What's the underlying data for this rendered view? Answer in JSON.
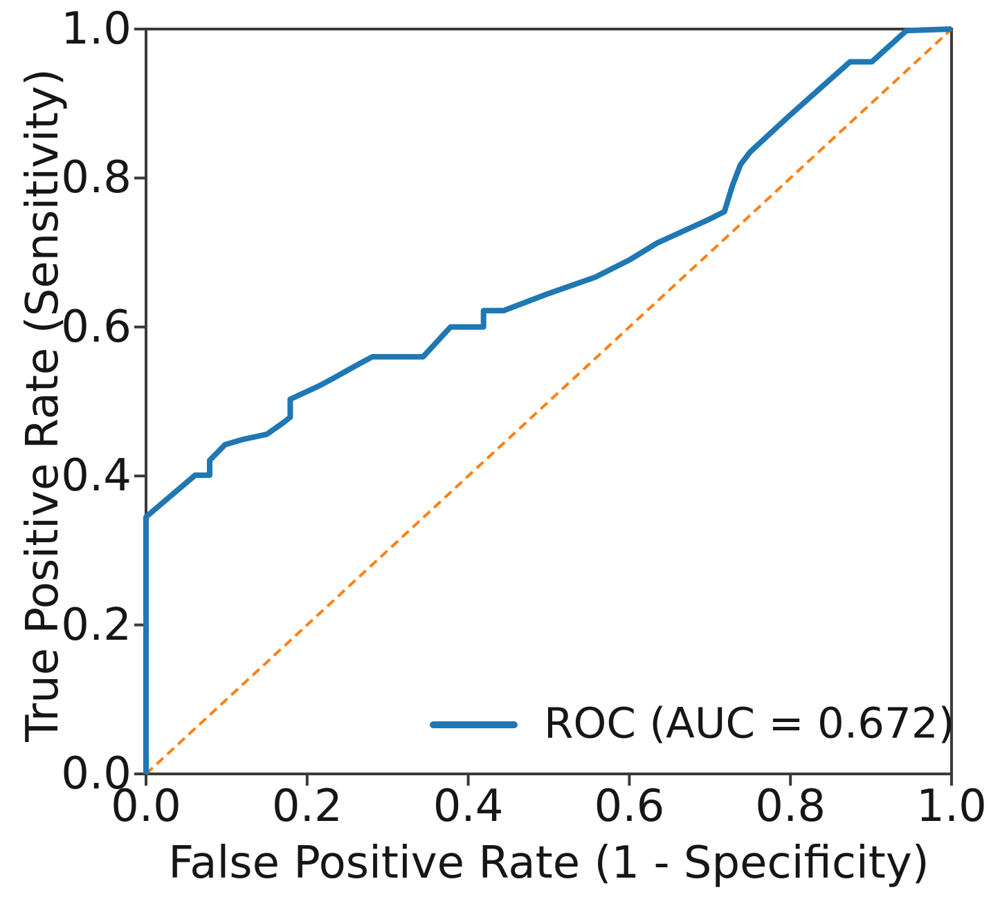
{
  "chart_data": {
    "type": "line",
    "title": "",
    "xlabel": "False Positive Rate (1 - Specificity)",
    "ylabel": "True Positive Rate (Sensitivity)",
    "xlim": [
      0.0,
      1.0
    ],
    "ylim": [
      0.0,
      1.0
    ],
    "x_ticks": [
      "0.0",
      "0.2",
      "0.4",
      "0.6",
      "0.8",
      "1.0"
    ],
    "y_ticks": [
      "0.0",
      "0.2",
      "0.4",
      "0.6",
      "0.8",
      "1.0"
    ],
    "grid": false,
    "auc": 0.672,
    "legend": {
      "position": "lower-right",
      "label": "ROC (AUC = 0.672)",
      "swatch_color": "#1f77b4"
    },
    "series": [
      {
        "name": "chance-diagonal",
        "color": "#ff7f0e",
        "line_style": "dashed",
        "line_width": 4,
        "in_legend": false,
        "points": [
          [
            0.0,
            0.0
          ],
          [
            1.0,
            1.0
          ]
        ]
      },
      {
        "name": "roc-curve",
        "legend_label": "ROC (AUC = 0.672)",
        "color": "#1f77b4",
        "line_style": "solid",
        "line_width": 8,
        "in_legend": true,
        "points": [
          [
            0.0,
            0.0
          ],
          [
            0.0,
            0.345
          ],
          [
            0.061,
            0.401
          ],
          [
            0.079,
            0.401
          ],
          [
            0.079,
            0.421
          ],
          [
            0.098,
            0.442
          ],
          [
            0.12,
            0.449
          ],
          [
            0.15,
            0.456
          ],
          [
            0.171,
            0.472
          ],
          [
            0.179,
            0.479
          ],
          [
            0.179,
            0.503
          ],
          [
            0.215,
            0.521
          ],
          [
            0.234,
            0.532
          ],
          [
            0.262,
            0.549
          ],
          [
            0.281,
            0.56
          ],
          [
            0.344,
            0.56
          ],
          [
            0.378,
            0.6
          ],
          [
            0.419,
            0.6
          ],
          [
            0.419,
            0.622
          ],
          [
            0.444,
            0.622
          ],
          [
            0.5,
            0.645
          ],
          [
            0.558,
            0.667
          ],
          [
            0.6,
            0.69
          ],
          [
            0.635,
            0.713
          ],
          [
            0.7,
            0.745
          ],
          [
            0.718,
            0.755
          ],
          [
            0.728,
            0.79
          ],
          [
            0.738,
            0.818
          ],
          [
            0.75,
            0.835
          ],
          [
            0.8,
            0.885
          ],
          [
            0.874,
            0.956
          ],
          [
            0.901,
            0.956
          ],
          [
            0.944,
            0.998
          ],
          [
            1.0,
            1.0
          ]
        ]
      }
    ],
    "style": {
      "spine_color": "#3a3a3a",
      "tick_color": "#3a3a3a",
      "text_color": "#161616",
      "background": "#ffffff"
    }
  }
}
